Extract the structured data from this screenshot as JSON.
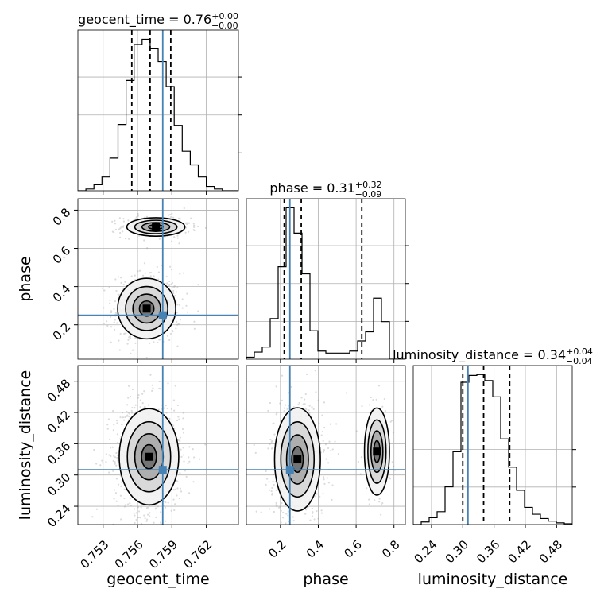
{
  "chart_data": {
    "type": "corner",
    "params": [
      "geocent_time",
      "phase",
      "luminosity_distance"
    ],
    "axis_labels": [
      "geocent_time",
      "phase",
      "luminosity_distance"
    ],
    "truths": [
      0.7582,
      0.25,
      0.31
    ],
    "truth_color": "#4682b4",
    "ranges": [
      [
        0.7508,
        0.7648
      ],
      [
        0.02,
        0.86
      ],
      [
        0.205,
        0.51
      ]
    ],
    "ticks": [
      {
        "values": [
          0.753,
          0.756,
          0.759,
          0.762
        ],
        "labels": [
          "0.753",
          "0.756",
          "0.759",
          "0.762"
        ]
      },
      {
        "values": [
          0.2,
          0.4,
          0.6,
          0.8
        ],
        "labels": [
          "0.2",
          "0.4",
          "0.6",
          "0.8"
        ]
      },
      {
        "values": [
          0.24,
          0.3,
          0.36,
          0.42,
          0.48
        ],
        "labels": [
          "0.24",
          "0.30",
          "0.36",
          "0.42",
          "0.48"
        ]
      }
    ],
    "titles": [
      {
        "prefix": "geocent_time = 0.76",
        "sup": "+0.00",
        "sub": "−0.00"
      },
      {
        "prefix": "phase = 0.31",
        "sup": "+0.32",
        "sub": "−0.09"
      },
      {
        "prefix": "luminosity_distance = 0.34",
        "sup": "+0.04",
        "sub": "−0.04"
      }
    ],
    "quantiles": [
      [
        0.7555,
        0.7571,
        0.7589
      ],
      [
        0.22,
        0.31,
        0.63
      ],
      [
        0.3,
        0.34,
        0.39
      ]
    ],
    "histograms": [
      {
        "edges": [
          0.7508,
          0.7515,
          0.7522,
          0.7529,
          0.7536,
          0.7543,
          0.755,
          0.7557,
          0.7564,
          0.7571,
          0.7578,
          0.7585,
          0.7592,
          0.7599,
          0.7606,
          0.7613,
          0.762,
          0.7627,
          0.7634,
          0.7641,
          0.7648
        ],
        "counts": [
          0,
          2,
          7,
          16,
          38,
          77,
          128,
          170,
          176,
          165,
          150,
          121,
          76,
          46,
          30,
          16,
          5,
          2,
          0,
          0
        ]
      },
      {
        "edges": [
          0.02,
          0.062,
          0.104,
          0.146,
          0.188,
          0.23,
          0.272,
          0.314,
          0.356,
          0.398,
          0.44,
          0.482,
          0.524,
          0.566,
          0.608,
          0.65,
          0.692,
          0.734,
          0.776,
          0.818,
          0.86
        ],
        "counts": [
          2,
          7,
          12,
          40,
          91,
          149,
          124,
          84,
          28,
          8,
          6,
          6,
          6,
          8,
          18,
          27,
          60,
          37,
          0,
          0
        ]
      },
      {
        "edges": [
          0.205,
          0.22025,
          0.2355,
          0.25075,
          0.266,
          0.28125,
          0.2965,
          0.31175,
          0.327,
          0.34225,
          0.3575,
          0.37275,
          0.388,
          0.40325,
          0.4185,
          0.43375,
          0.449,
          0.46425,
          0.4795,
          0.49475,
          0.51
        ],
        "counts": [
          0,
          3,
          8,
          15,
          44,
          85,
          166,
          174,
          175,
          168,
          149,
          100,
          67,
          40,
          20,
          12,
          7,
          4,
          2,
          1
        ]
      }
    ],
    "pairs": [
      {
        "x": 0,
        "y": 1,
        "modes": [
          {
            "cx": 0.7568,
            "cy": 0.285,
            "sx": 0.00115,
            "sy": 0.072,
            "weight": 0.68
          },
          {
            "cx": 0.7576,
            "cy": 0.712,
            "sx": 0.00115,
            "sy": 0.022,
            "weight": 0.32
          }
        ]
      },
      {
        "x": 0,
        "y": 2,
        "modes": [
          {
            "cx": 0.757,
            "cy": 0.335,
            "sx": 0.00118,
            "sy": 0.042,
            "weight": 1.0
          }
        ]
      },
      {
        "x": 1,
        "y": 2,
        "modes": [
          {
            "cx": 0.29,
            "cy": 0.33,
            "sx": 0.055,
            "sy": 0.045,
            "weight": 0.82
          },
          {
            "cx": 0.71,
            "cy": 0.345,
            "sx": 0.03,
            "sy": 0.038,
            "weight": 0.18
          }
        ]
      }
    ],
    "grid": true
  }
}
